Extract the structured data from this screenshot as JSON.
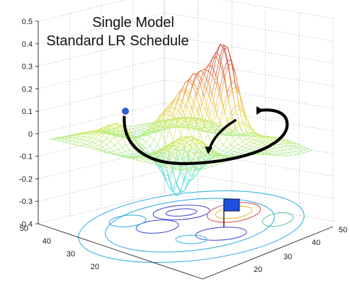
{
  "chart_data": {
    "type": "surface",
    "title_lines": [
      "Single Model",
      "Standard LR Schedule"
    ],
    "z_ticks": [
      "0.5",
      "0.4",
      "0.3",
      "0.2",
      "0.1",
      "0",
      "-0.1",
      "-0.2",
      "-0.3",
      "-0.4"
    ],
    "z_tick_values": [
      0.5,
      0.4,
      0.3,
      0.2,
      0.1,
      0,
      -0.1,
      -0.2,
      -0.3,
      -0.4
    ],
    "zlim": [
      -0.4,
      0.5
    ],
    "left_axis_ticks": [
      "50",
      "40",
      "30",
      "20"
    ],
    "right_axis_ticks": [
      "50",
      "40",
      "30",
      "20"
    ],
    "grid": true,
    "colormap": [
      "#4fd8e8",
      "#7fe6c8",
      "#d8ee6a",
      "#f2c04a",
      "#e0603a",
      "#b8322a"
    ],
    "trajectory": {
      "description_points": "start at left hill, sweep down through valley, end near central minimum",
      "line_color": "#000000",
      "start_marker_color": "#2f5fd0"
    },
    "flag_color": "#1f4fe0",
    "contour_colors": [
      "#3ab0e0",
      "#4a4fd0",
      "#e05050",
      "#f0c040",
      "#60c0a0"
    ]
  }
}
